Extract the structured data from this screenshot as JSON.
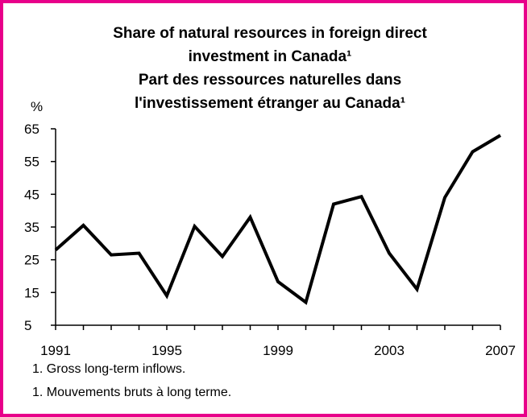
{
  "chart_data": {
    "type": "line",
    "title": [
      "Share of natural resources in foreign direct",
      "investment in Canada¹",
      "Part des ressources naturelles dans",
      "l'investissement étranger au Canada¹"
    ],
    "y_label": "%",
    "x": [
      1991,
      1992,
      1993,
      1994,
      1995,
      1996,
      1997,
      1998,
      1999,
      2000,
      2001,
      2002,
      2003,
      2004,
      2005,
      2006,
      2007
    ],
    "series": [
      {
        "name": "Share",
        "color": "#000000",
        "values": [
          28,
          35.5,
          26.5,
          27,
          14,
          35.2,
          26,
          38,
          18.3,
          12,
          42,
          44.3,
          27,
          16,
          44,
          58,
          63
        ]
      }
    ],
    "xlim": [
      1991,
      2007
    ],
    "xticks": [
      1991,
      1995,
      1999,
      2003,
      2007
    ],
    "ylim": [
      5,
      65
    ],
    "yticks": [
      5,
      15,
      25,
      35,
      45,
      55,
      65
    ],
    "grid": false,
    "footnotes": [
      "1.  Gross long-term inflows.",
      "1.  Mouvements bruts à long terme."
    ],
    "border_color": "#e8008a"
  }
}
